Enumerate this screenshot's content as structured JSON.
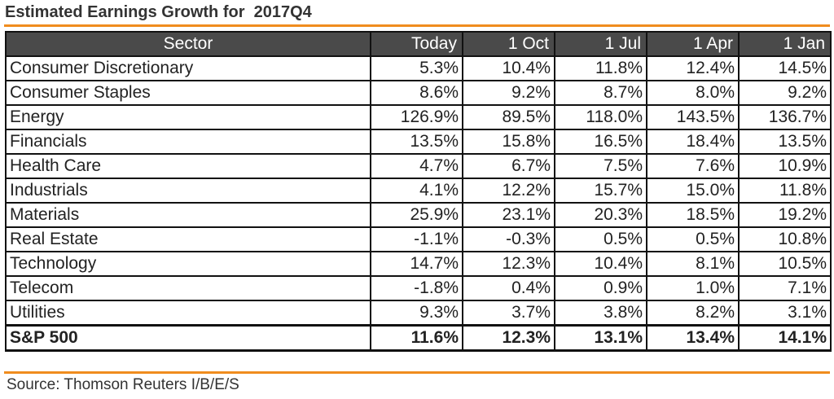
{
  "colors": {
    "accent": "#f08c1e",
    "header_bg": "#4a4a4a",
    "header_text": "#ffffff",
    "border": "#111111"
  },
  "chart_data": {
    "type": "table",
    "title": "Estimated Earnings Growth for  2017Q4",
    "columns": [
      "Sector",
      "Today",
      "1 Oct",
      "1 Jul",
      "1 Apr",
      "1 Jan"
    ],
    "rows": [
      [
        "Consumer Discretionary",
        "5.3%",
        "10.4%",
        "11.8%",
        "12.4%",
        "14.5%"
      ],
      [
        "Consumer Staples",
        "8.6%",
        "9.2%",
        "8.7%",
        "8.0%",
        "9.2%"
      ],
      [
        "Energy",
        "126.9%",
        "89.5%",
        "118.0%",
        "143.5%",
        "136.7%"
      ],
      [
        "Financials",
        "13.5%",
        "15.8%",
        "16.5%",
        "18.4%",
        "13.5%"
      ],
      [
        "Health Care",
        "4.7%",
        "6.7%",
        "7.5%",
        "7.6%",
        "10.9%"
      ],
      [
        "Industrials",
        "4.1%",
        "12.2%",
        "15.7%",
        "15.0%",
        "11.8%"
      ],
      [
        "Materials",
        "25.9%",
        "23.1%",
        "20.3%",
        "18.5%",
        "19.2%"
      ],
      [
        "Real Estate",
        "-1.1%",
        "-0.3%",
        "0.5%",
        "0.5%",
        "10.8%"
      ],
      [
        "Technology",
        "14.7%",
        "12.3%",
        "10.4%",
        "8.1%",
        "10.5%"
      ],
      [
        "Telecom",
        "-1.8%",
        "0.4%",
        "0.9%",
        "1.0%",
        "7.1%"
      ],
      [
        "Utilities",
        "9.3%",
        "3.7%",
        "3.8%",
        "8.2%",
        "3.1%"
      ]
    ],
    "total_row": [
      "S&P 500",
      "11.6%",
      "12.3%",
      "13.1%",
      "13.4%",
      "14.1%"
    ],
    "source": "Source: Thomson Reuters I/B/E/S"
  }
}
